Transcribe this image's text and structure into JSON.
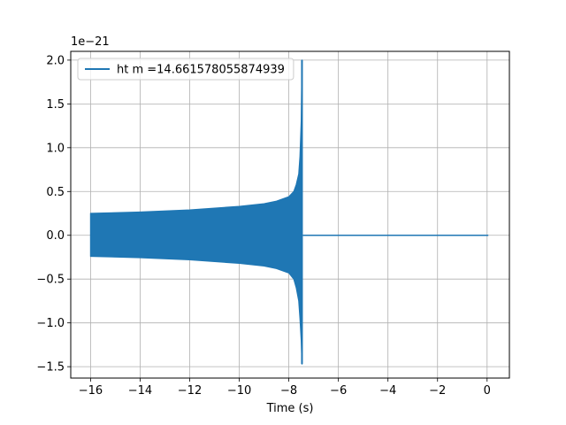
{
  "chart_data": {
    "type": "line",
    "title": "",
    "xlabel": "Time (s)",
    "ylabel": "",
    "y_offset_text": "1e−21",
    "xlim": [
      -16.8,
      0.9
    ],
    "ylim": [
      -1.63,
      2.1
    ],
    "grid": true,
    "legend_position": "top-left",
    "x_ticks": [
      -16,
      -14,
      -12,
      -10,
      -8,
      -6,
      -4,
      -2,
      0
    ],
    "x_tick_labels": [
      "−16",
      "−14",
      "−12",
      "−10",
      "−8",
      "−6",
      "−4",
      "−2",
      "0"
    ],
    "y_ticks": [
      -1.5,
      -1.0,
      -0.5,
      0.0,
      0.5,
      1.0,
      1.5,
      2.0
    ],
    "y_tick_labels": [
      "−1.5",
      "−1.0",
      "−0.5",
      "0.0",
      "0.5",
      "1.0",
      "1.5",
      "2.0"
    ],
    "series": [
      {
        "name": "ht m =14.661578055874939",
        "color": "#1f77b4",
        "envelope": {
          "x": [
            -16.0,
            -14.0,
            -12.0,
            -10.0,
            -9.0,
            -8.5,
            -8.0,
            -7.8,
            -7.7,
            -7.6,
            -7.55,
            -7.5,
            -7.47
          ],
          "upper": [
            0.25,
            0.265,
            0.29,
            0.33,
            0.36,
            0.39,
            0.44,
            0.5,
            0.58,
            0.7,
            0.9,
            1.3,
            2.0
          ],
          "lower": [
            -0.24,
            -0.255,
            -0.28,
            -0.32,
            -0.35,
            -0.38,
            -0.43,
            -0.5,
            -0.6,
            -0.75,
            -0.95,
            -1.2,
            -1.47
          ]
        },
        "flat": {
          "x": [
            -7.43,
            0.05
          ],
          "y": [
            0.0,
            0.0
          ]
        }
      }
    ]
  }
}
